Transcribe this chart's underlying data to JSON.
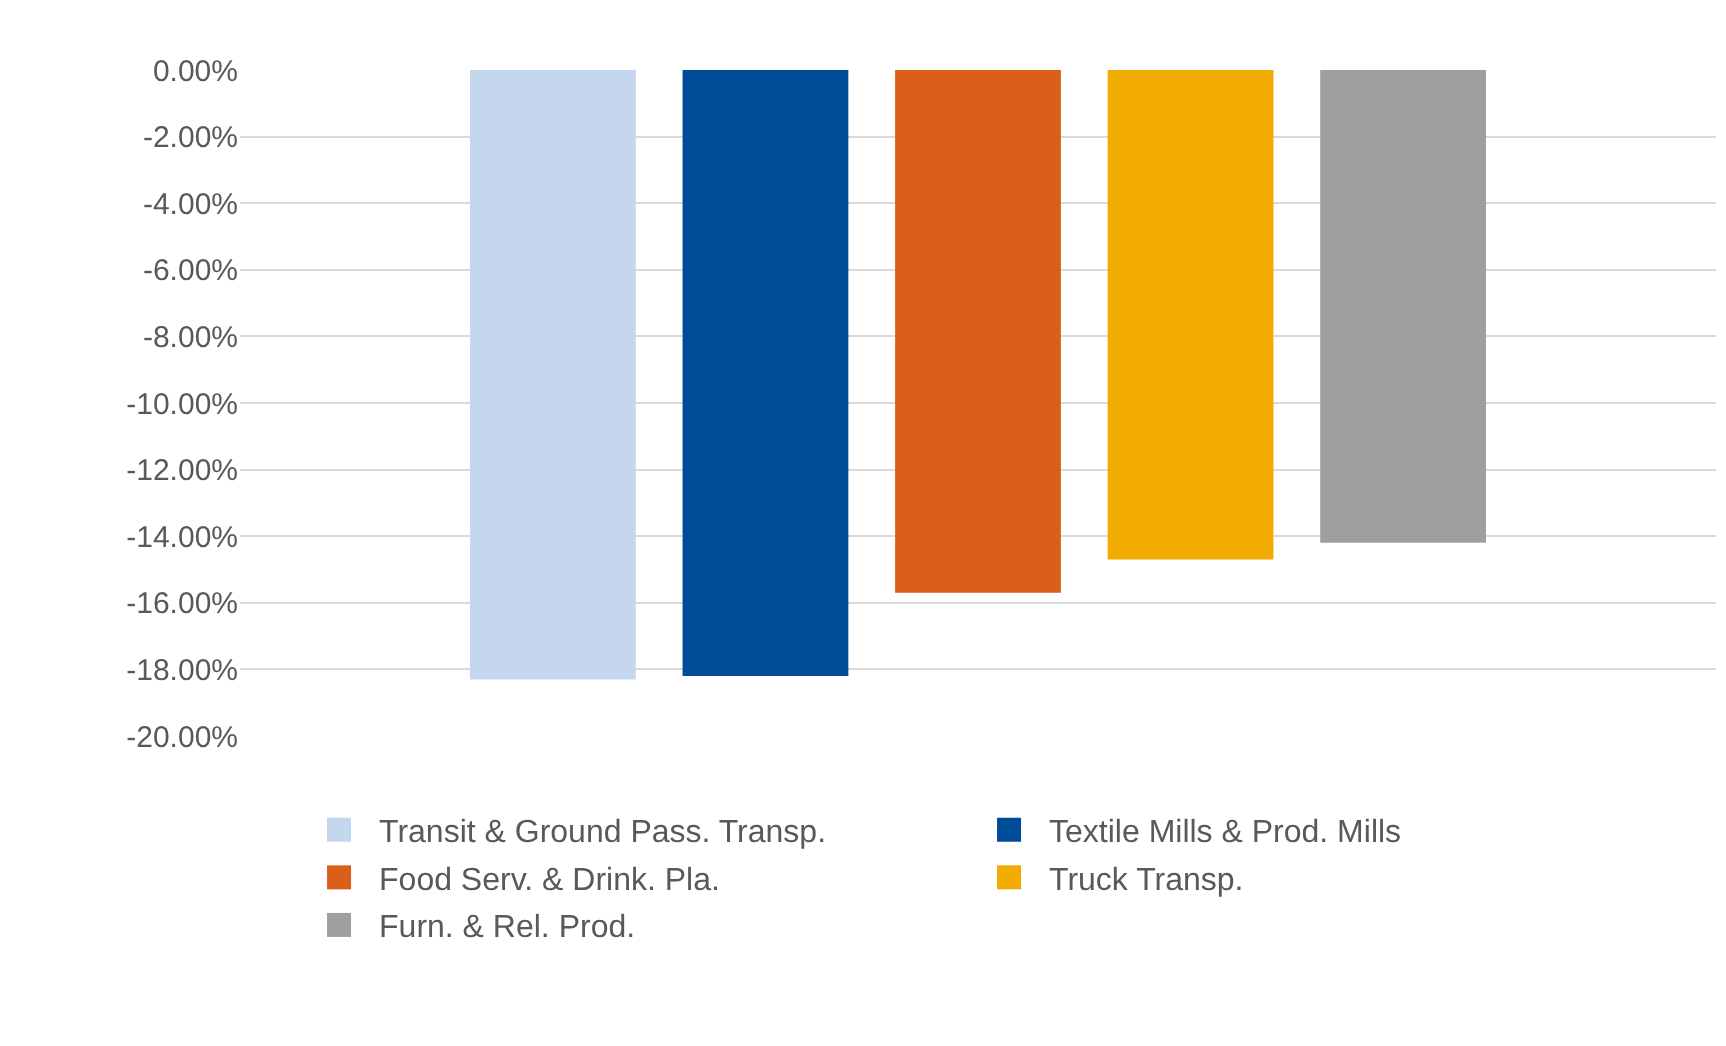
{
  "chart_data": {
    "type": "bar",
    "categories": [
      null
    ],
    "series": [
      {
        "name": "Transit & Ground Pass. Transp.",
        "color": "#c5d7ee",
        "values": [
          -18.3
        ]
      },
      {
        "name": "Textile Mills & Prod. Mills",
        "color": "#004b98",
        "values": [
          -18.2
        ]
      },
      {
        "name": "Food Serv. & Drink. Pla.",
        "color": "#da5f19",
        "values": [
          -15.7
        ]
      },
      {
        "name": "Truck Transp.",
        "color": "#f2ab00",
        "values": [
          -14.7
        ]
      },
      {
        "name": "Furn. & Rel. Prod.",
        "color": "#9d9fa0",
        "values": [
          -14.2
        ]
      }
    ],
    "ylim": [
      -20,
      0
    ],
    "yticks": [
      {
        "value": 0,
        "label": "0.00%"
      },
      {
        "value": -2,
        "label": "-2.00%"
      },
      {
        "value": -4,
        "label": "-4.00%"
      },
      {
        "value": -6,
        "label": "-6.00%"
      },
      {
        "value": -8,
        "label": "-8.00%"
      },
      {
        "value": -10,
        "label": "-10.00%"
      },
      {
        "value": -12,
        "label": "-12.00%"
      },
      {
        "value": -14,
        "label": "-14.00%"
      },
      {
        "value": -16,
        "label": "-16.00%"
      },
      {
        "value": -18,
        "label": "-18.00%"
      },
      {
        "value": -20,
        "label": "-20.00%"
      }
    ],
    "grid": "y",
    "legend": "bottom",
    "tick_labels": "y"
  }
}
